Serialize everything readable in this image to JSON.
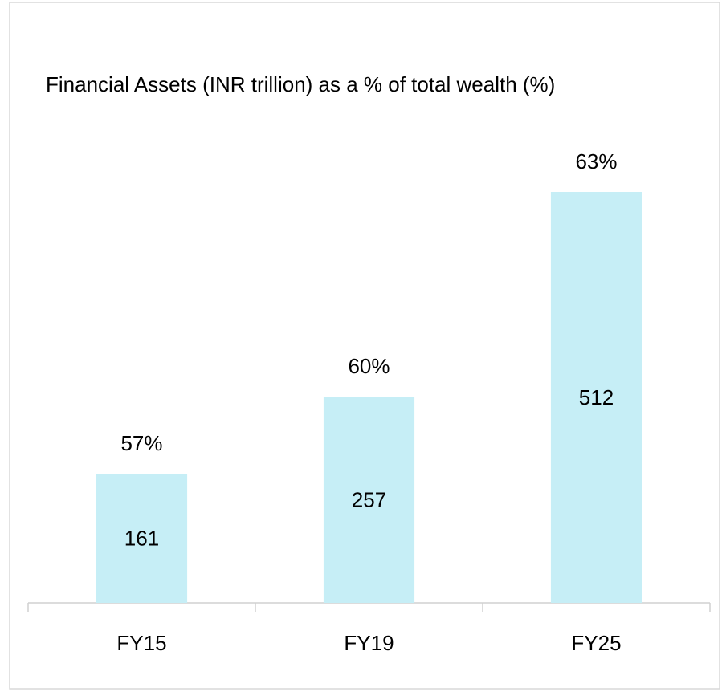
{
  "chart_data": {
    "type": "bar",
    "title": "Financial Assets (INR trillion) as a % of total wealth (%)",
    "categories": [
      "FY15",
      "FY19",
      "FY25"
    ],
    "values": [
      161,
      257,
      512
    ],
    "shares": [
      57,
      60,
      63
    ],
    "share_labels": [
      "57%",
      "60%",
      "63%"
    ],
    "color": "#c6eef6",
    "ylim": [
      0,
      600
    ]
  }
}
